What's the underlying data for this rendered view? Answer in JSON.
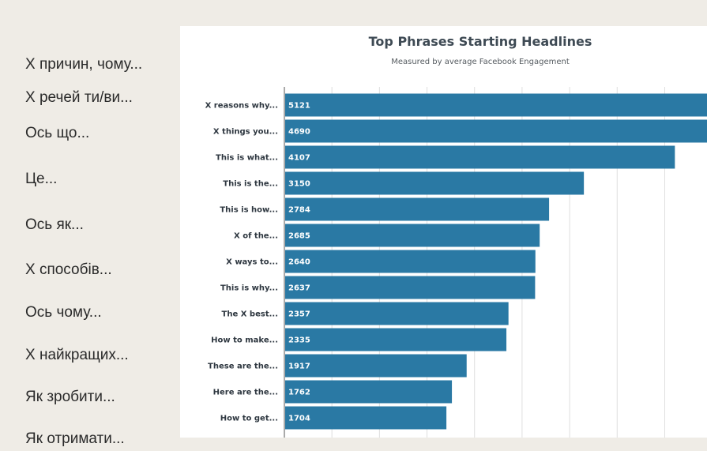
{
  "translations": [
    "Х причин, чому...",
    "Х речей ти/ви...",
    "Ось що...",
    "Це...",
    "Ось як...",
    "Х способів...",
    "Ось чому...",
    "Х найкращих...",
    "Як зробити...",
    "Як отримати..."
  ],
  "colors": {
    "bar": "#2a79a4",
    "grid": "#dedede",
    "axis": "#555555",
    "background": "#efece6"
  },
  "chart_data": {
    "type": "bar",
    "orientation": "horizontal",
    "title": "Top Phrases Starting Headlines",
    "subtitle": "Measured by average Facebook Engagement",
    "xlabel": "",
    "ylabel": "",
    "categories": [
      "X reasons why...",
      "X things you...",
      "This is what...",
      "This is the...",
      "This is how...",
      "X of the...",
      "X ways to...",
      "This is why...",
      "The X best...",
      "How to make...",
      "These are the...",
      "Here are the...",
      "How to get..."
    ],
    "values": [
      5121,
      4690,
      4107,
      3150,
      2784,
      2685,
      2640,
      2637,
      2357,
      2335,
      1917,
      1762,
      1704
    ],
    "xlim": [
      0,
      5500
    ],
    "grid": true
  }
}
